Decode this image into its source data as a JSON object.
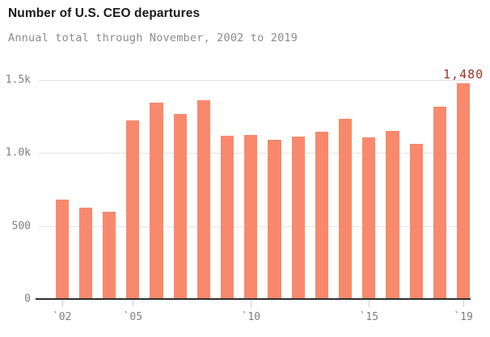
{
  "header": {
    "title": "Number of U.S. CEO departures",
    "subtitle": "Annual total through November, 2002 to 2019"
  },
  "chart_data": {
    "type": "bar",
    "title": "Number of U.S. CEO departures",
    "subtitle": "Annual total through November, 2002 to 2019",
    "categories": [
      2002,
      2003,
      2004,
      2005,
      2006,
      2007,
      2008,
      2009,
      2010,
      2011,
      2012,
      2013,
      2014,
      2015,
      2016,
      2017,
      2018,
      2019
    ],
    "values": [
      680,
      625,
      600,
      1225,
      1345,
      1270,
      1360,
      1120,
      1125,
      1090,
      1110,
      1145,
      1235,
      1105,
      1150,
      1065,
      1320,
      1480
    ],
    "xlabel": "",
    "ylabel": "",
    "ylim": [
      0,
      1500
    ],
    "grid": "horizontal",
    "legend": "none",
    "y_ticks": [
      {
        "label": "0",
        "value": 0
      },
      {
        "label": "500",
        "value": 500
      },
      {
        "label": "1.0k",
        "value": 1000
      },
      {
        "label": "1.5k",
        "value": 1500
      }
    ],
    "x_ticks": [
      {
        "label": "`02",
        "year": 2002
      },
      {
        "label": "`05",
        "year": 2005
      },
      {
        "label": "`10",
        "year": 2010
      },
      {
        "label": "`15",
        "year": 2015
      },
      {
        "label": "`19",
        "year": 2019
      }
    ],
    "annotation": {
      "text": "1,480",
      "year": 2019,
      "value": 1480
    },
    "colors": {
      "bar": "#f8896d",
      "annotation": "#9e3123",
      "grid": "#e4e4e4",
      "axis": "#2e2e2e",
      "tick_text": "#7e7e7e",
      "subtitle_text": "#8b8b8b",
      "title_text": "#1a1a1a",
      "background": "#ffffff"
    }
  }
}
